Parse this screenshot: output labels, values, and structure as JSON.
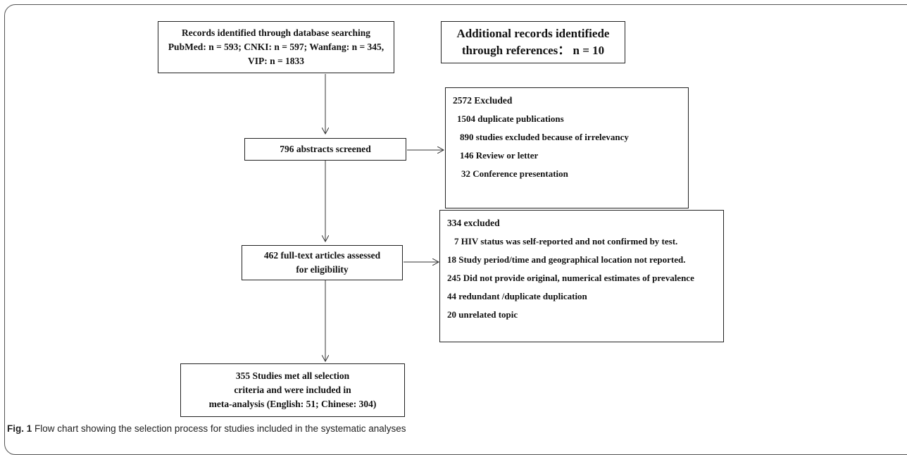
{
  "records_box": {
    "lines": [
      "Records identified through database searching",
      "PubMed: n = 593; CNKI: n = 597; Wanfang: n = 345,",
      "VIP: n = 1833"
    ]
  },
  "additional_box": {
    "lines": [
      "Additional records identifiede",
      "through references： n = 10"
    ]
  },
  "abstracts_box": {
    "lines": [
      "796 abstracts screened"
    ]
  },
  "excluded_1": {
    "header": "2572 Excluded",
    "items": [
      "1504  duplicate publications",
      "890  studies excluded because of irrelevancy",
      "146  Review or letter",
      "32   Conference presentation"
    ]
  },
  "fulltext_box": {
    "lines": [
      "462 full-text articles assessed",
      "for eligibility"
    ]
  },
  "excluded_2": {
    "header": "334 excluded",
    "items": [
      "7  HIV status was self-reported and not confirmed by test.",
      "18  Study period/time and geographical location  not reported.",
      "245  Did not provide original, numerical  estimates of prevalence",
      "44  redundant /duplicate duplication",
      "20   unrelated topic"
    ]
  },
  "included_box": {
    "lines": [
      "355 Studies met all selection",
      "criteria and were included in",
      "meta-analysis (English: 51; Chinese: 304)"
    ]
  },
  "caption": {
    "label": "Fig. 1",
    "text": "Flow chart showing the selection process for studies included in the systematic analyses"
  }
}
